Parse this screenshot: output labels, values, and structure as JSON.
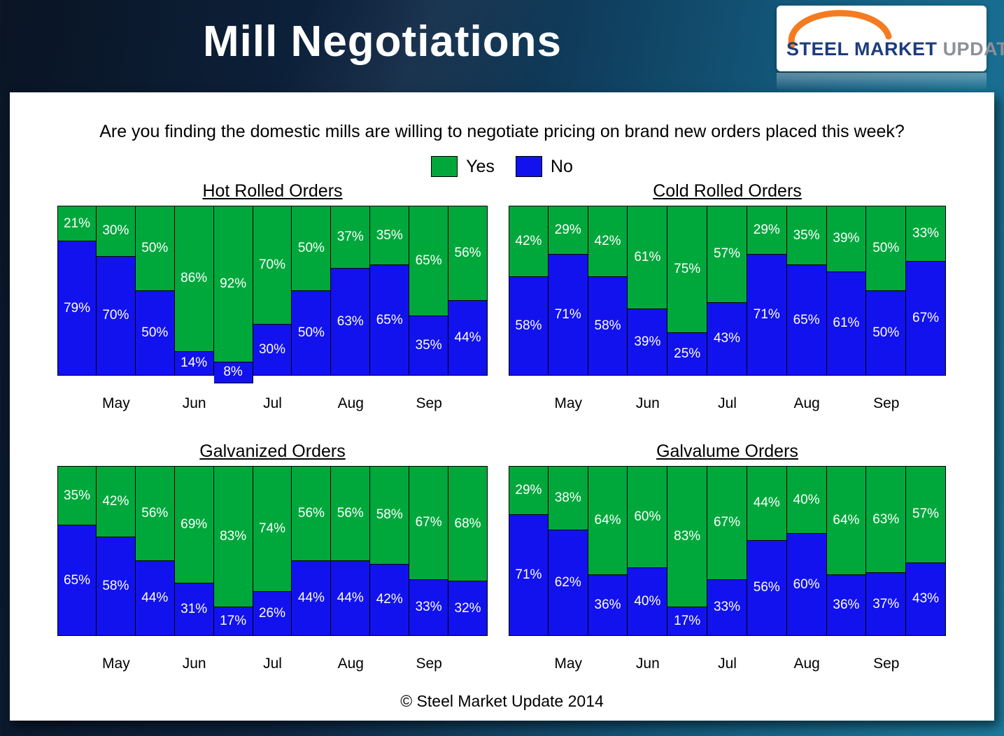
{
  "header": {
    "title": "Mill Negotiations",
    "logo": {
      "steel": "STEEL",
      "market": "MARKET",
      "update": "UPDATE"
    }
  },
  "question": "Are you finding the domestic mills are willing to negotiate pricing on brand new orders placed this week?",
  "legend": {
    "yes": "Yes",
    "no": "No"
  },
  "footer": "© Steel Market Update 2014",
  "colors": {
    "yes_green": "#00a83c",
    "no_blue": "#1212ee"
  },
  "chart_data": [
    {
      "type": "bar",
      "stacked": true,
      "unit": "%",
      "title": "Hot Rolled Orders",
      "categories": [
        "May",
        "Jun",
        "Jul",
        "Aug",
        "Sep"
      ],
      "series": [
        {
          "name": "Yes",
          "values": [
            21,
            30,
            50,
            86,
            92,
            70,
            50,
            37,
            35,
            65,
            56
          ]
        },
        {
          "name": "No",
          "values": [
            79,
            70,
            50,
            14,
            8,
            30,
            50,
            63,
            65,
            35,
            44
          ]
        }
      ]
    },
    {
      "type": "bar",
      "stacked": true,
      "unit": "%",
      "title": "Cold Rolled Orders",
      "categories": [
        "May",
        "Jun",
        "Jul",
        "Aug",
        "Sep"
      ],
      "series": [
        {
          "name": "Yes",
          "values": [
            42,
            29,
            42,
            61,
            75,
            57,
            29,
            35,
            39,
            50,
            33
          ]
        },
        {
          "name": "No",
          "values": [
            58,
            71,
            58,
            39,
            25,
            43,
            71,
            65,
            61,
            50,
            67
          ]
        }
      ]
    },
    {
      "type": "bar",
      "stacked": true,
      "unit": "%",
      "title": "Galvanized Orders",
      "categories": [
        "May",
        "Jun",
        "Jul",
        "Aug",
        "Sep"
      ],
      "series": [
        {
          "name": "Yes",
          "values": [
            35,
            42,
            56,
            69,
            83,
            74,
            56,
            56,
            58,
            67,
            68
          ]
        },
        {
          "name": "No",
          "values": [
            65,
            58,
            44,
            31,
            17,
            26,
            44,
            44,
            42,
            33,
            32
          ]
        }
      ]
    },
    {
      "type": "bar",
      "stacked": true,
      "unit": "%",
      "title": "Galvalume Orders",
      "categories": [
        "May",
        "Jun",
        "Jul",
        "Aug",
        "Sep"
      ],
      "series": [
        {
          "name": "Yes",
          "values": [
            29,
            38,
            64,
            60,
            83,
            67,
            44,
            40,
            64,
            63,
            57
          ]
        },
        {
          "name": "No",
          "values": [
            71,
            62,
            36,
            40,
            17,
            33,
            56,
            60,
            36,
            37,
            43
          ]
        }
      ]
    }
  ]
}
